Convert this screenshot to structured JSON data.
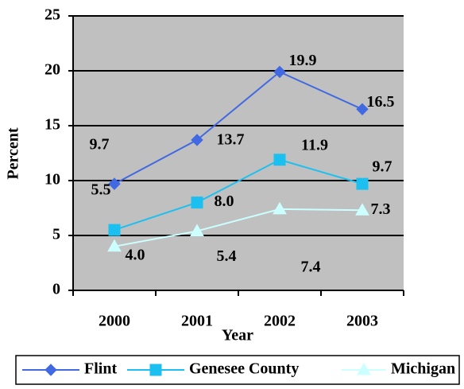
{
  "chart_data": {
    "type": "line",
    "categories": [
      "2000",
      "2001",
      "2002",
      "2003"
    ],
    "series": [
      {
        "name": "Flint",
        "color": "#4169e1",
        "marker": "diamond",
        "values": [
          9.7,
          13.7,
          19.9,
          16.5
        ],
        "value_labels": [
          "9.7",
          "13.7",
          "19.9",
          "16.5"
        ]
      },
      {
        "name": "Genesee County",
        "color": "#1cc0f0",
        "marker": "square",
        "values": [
          5.5,
          8.0,
          11.9,
          9.7
        ],
        "value_labels": [
          "5.5",
          "8.0",
          "11.9",
          "9.7"
        ]
      },
      {
        "name": "Michigan",
        "color": "#ccffff",
        "marker": "triangle",
        "values": [
          4.0,
          5.4,
          7.4,
          7.3
        ],
        "value_labels": [
          "4.0",
          "5.4",
          "7.4",
          "7.3"
        ]
      }
    ],
    "x_label": "Year",
    "y_label": "Percent",
    "ylim": [
      0,
      25
    ],
    "yticks": [
      0,
      5,
      10,
      15,
      20,
      25
    ],
    "grid": true,
    "legend": "bottom"
  }
}
